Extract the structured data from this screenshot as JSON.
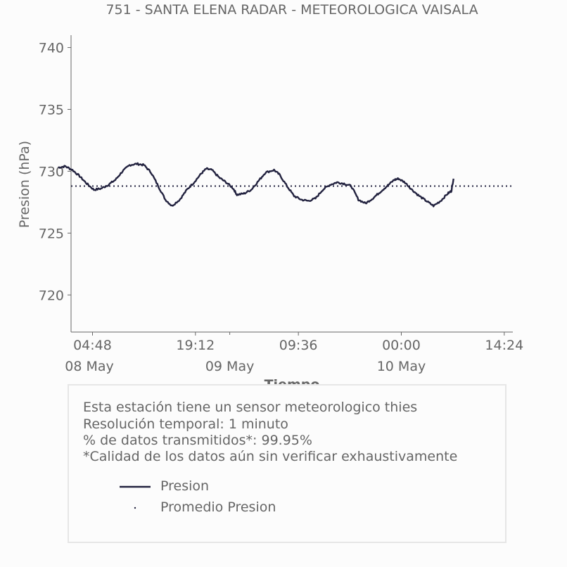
{
  "colors": {
    "line": "#22223f",
    "mean": "#22223f",
    "text": "#666666",
    "axis": "#666666",
    "box_border": "#e6e6e6"
  },
  "chart_data": {
    "type": "line",
    "title": "751 - SANTA ELENA RADAR - METEOROLOGICA VAISALA",
    "xlabel": "Tiempo",
    "ylabel": "Presion (hPa)",
    "ylim": [
      717,
      741
    ],
    "y_ticks": [
      720,
      725,
      730,
      735,
      740
    ],
    "x_unit": "hours since 08 May 00:00",
    "xlim": [
      1.8,
      63.6
    ],
    "x_ticks": [
      {
        "x": 4.8,
        "label": "04:48"
      },
      {
        "x": 19.2,
        "label": "19:12"
      },
      {
        "x": 33.6,
        "label": "09:36"
      },
      {
        "x": 48.0,
        "label": "00:00"
      },
      {
        "x": 62.4,
        "label": "14:24"
      }
    ],
    "day_ticks": [
      {
        "x": 0,
        "label": "08 May"
      },
      {
        "x": 24,
        "label": "09 May"
      },
      {
        "x": 48,
        "label": "10 May"
      }
    ],
    "grid": false,
    "series": [
      {
        "name": "Presion",
        "style": "solid",
        "points": [
          [
            0,
            730.3
          ],
          [
            1,
            730.4
          ],
          [
            2,
            730.1
          ],
          [
            3,
            729.6
          ],
          [
            4,
            729.0
          ],
          [
            5,
            728.5
          ],
          [
            6,
            728.6
          ],
          [
            7,
            728.9
          ],
          [
            8,
            729.3
          ],
          [
            9,
            730.0
          ],
          [
            10,
            730.5
          ],
          [
            11,
            730.6
          ],
          [
            12,
            730.5
          ],
          [
            13,
            729.9
          ],
          [
            14,
            728.8
          ],
          [
            15,
            727.7
          ],
          [
            15.9,
            727.2
          ],
          [
            17,
            727.7
          ],
          [
            18,
            728.5
          ],
          [
            19,
            729.1
          ],
          [
            20,
            729.8
          ],
          [
            20.7,
            730.2
          ],
          [
            21.5,
            730.1
          ],
          [
            22.5,
            729.5
          ],
          [
            23.5,
            729.1
          ],
          [
            24.5,
            728.6
          ],
          [
            25,
            728.1
          ],
          [
            26,
            728.2
          ],
          [
            27,
            728.5
          ],
          [
            28,
            729.2
          ],
          [
            29,
            729.9
          ],
          [
            30.2,
            730.1
          ],
          [
            31,
            729.7
          ],
          [
            32,
            728.8
          ],
          [
            33,
            728.0
          ],
          [
            34,
            727.7
          ],
          [
            35,
            727.6
          ],
          [
            36,
            727.8
          ],
          [
            37,
            728.5
          ],
          [
            38,
            728.9
          ],
          [
            39,
            729.1
          ],
          [
            40,
            729.0
          ],
          [
            41,
            728.8
          ],
          [
            42,
            727.7
          ],
          [
            43,
            727.4
          ],
          [
            44,
            727.8
          ],
          [
            45,
            728.3
          ],
          [
            46,
            728.8
          ],
          [
            47,
            729.3
          ],
          [
            47.6,
            729.4
          ],
          [
            48.5,
            729.1
          ],
          [
            49.5,
            728.5
          ],
          [
            50.5,
            728.0
          ],
          [
            51.5,
            727.6
          ],
          [
            52.5,
            727.2
          ],
          [
            53.5,
            727.6
          ],
          [
            54.5,
            728.2
          ],
          [
            55,
            728.4
          ],
          [
            55.3,
            729.4
          ]
        ]
      },
      {
        "name": "Promedio Presion",
        "style": "dotted",
        "value": 728.8
      }
    ]
  },
  "info": {
    "line1": "Esta estación tiene un sensor meteorologico thies",
    "line2": "Resolución temporal: 1 minuto",
    "line3": "% de datos transmitidos*: 99.95%",
    "line4": "*Calidad de los datos aún sin verificar exhaustivamente"
  }
}
